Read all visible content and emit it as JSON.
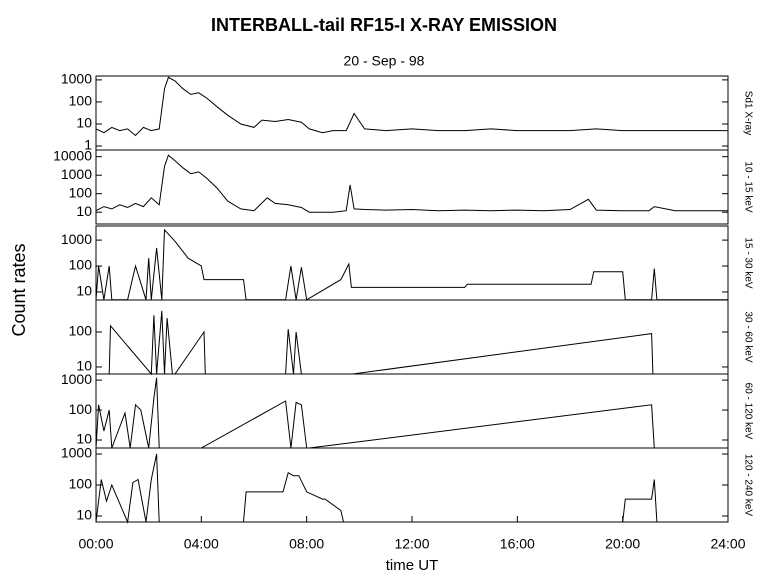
{
  "chart_data": [
    {
      "type": "line",
      "title": "INTERBALL-tail  RF15-I   X-RAY  EMISSION",
      "subtitle": "20 - Sep - 98",
      "ylabel": "Count  rates",
      "log_scale": true,
      "xlim": [
        0,
        24
      ],
      "ylim": [
        0.66,
        1500
      ],
      "yticks": [
        1,
        10,
        100,
        1000
      ],
      "x": [
        0,
        0.3,
        0.6,
        0.9,
        1.2,
        1.5,
        1.8,
        2.1,
        2.4,
        2.6,
        2.75,
        3.0,
        3.3,
        3.6,
        3.9,
        4.2,
        4.6,
        5.0,
        5.5,
        6.0,
        6.3,
        6.8,
        7.3,
        7.8,
        8.1,
        8.6,
        9.0,
        9.5,
        9.8,
        10.2,
        11,
        12,
        13,
        14,
        15,
        16,
        17,
        18,
        19,
        20,
        21,
        22,
        23,
        24
      ],
      "series": [
        {
          "name": "Sd1  X-ray",
          "color": "#000000",
          "values": [
            6,
            4,
            7,
            5,
            6,
            3,
            7,
            5,
            6,
            400,
            1300,
            900,
            400,
            220,
            260,
            150,
            60,
            25,
            10,
            7,
            15,
            13,
            16,
            12,
            6,
            4,
            5,
            5,
            30,
            6,
            5,
            6,
            5,
            5,
            6,
            5,
            5,
            5,
            6,
            5,
            5,
            5,
            5,
            5
          ]
        }
      ]
    },
    {
      "type": "line",
      "log_scale": true,
      "xlim": [
        0,
        24
      ],
      "ylim": [
        2.3,
        23000
      ],
      "yticks": [
        10,
        100,
        1000,
        10000
      ],
      "x": [
        0,
        0.3,
        0.6,
        0.9,
        1.2,
        1.5,
        1.8,
        2.1,
        2.4,
        2.6,
        2.75,
        3.0,
        3.3,
        3.6,
        3.9,
        4.2,
        4.6,
        5.0,
        5.5,
        6.0,
        6.5,
        6.8,
        7.3,
        7.8,
        8.1,
        8.6,
        9.0,
        9.5,
        9.65,
        9.8,
        10.2,
        11,
        12,
        13,
        14,
        15,
        16,
        17,
        18,
        18.7,
        19,
        20,
        21,
        21.2,
        22,
        23,
        24
      ],
      "series": [
        {
          "name": "10 - 15 keV",
          "color": "#000000",
          "values": [
            12,
            20,
            15,
            25,
            18,
            30,
            20,
            60,
            25,
            3000,
            12000,
            6000,
            2500,
            1200,
            1500,
            700,
            200,
            40,
            15,
            12,
            60,
            30,
            25,
            18,
            10,
            10,
            10,
            12,
            300,
            15,
            14,
            13,
            14,
            12,
            13,
            12,
            13,
            12,
            14,
            50,
            13,
            12,
            12,
            20,
            12,
            12,
            12
          ]
        }
      ]
    },
    {
      "type": "line",
      "log_scale": true,
      "xlim": [
        0,
        24
      ],
      "ylim": [
        4.9,
        3500
      ],
      "yticks": [
        10,
        100,
        1000
      ],
      "x": [
        0,
        0.1,
        0.3,
        0.5,
        0.6,
        1.2,
        1.5,
        1.9,
        2.0,
        2.1,
        2.3,
        2.5,
        2.6,
        3.0,
        3.5,
        4.0,
        4.1,
        5.6,
        5.7,
        7.2,
        7.4,
        7.6,
        7.8,
        8.0,
        9.3,
        9.6,
        9.7,
        9.8,
        14,
        14.1,
        18.8,
        18.9,
        20,
        20.1,
        21.1,
        21.2,
        21.3,
        24
      ],
      "series": [
        {
          "name": "15 - 30 keV",
          "color": "#000000",
          "values": [
            5,
            100,
            5,
            100,
            5,
            5,
            100,
            5,
            200,
            5,
            500,
            5,
            2500,
            900,
            200,
            100,
            30,
            30,
            5,
            5,
            100,
            5,
            90,
            5,
            30,
            120,
            15,
            15,
            15,
            20,
            20,
            60,
            60,
            5,
            5,
            80,
            5,
            5
          ]
        }
      ]
    },
    {
      "type": "line",
      "log_scale": true,
      "xlim": [
        0,
        24
      ],
      "ylim": [
        6.3,
        820
      ],
      "yticks": [
        10,
        100
      ],
      "x": [
        0,
        0.5,
        0.55,
        2.1,
        2.2,
        2.3,
        2.5,
        2.6,
        2.7,
        2.9,
        3.0,
        4.1,
        4.15,
        7.2,
        7.3,
        7.5,
        7.6,
        7.8,
        7.9,
        9.7,
        9.75,
        21.1,
        21.15,
        24
      ],
      "series": [
        {
          "name": "30 - 60 keV",
          "color": "#000000",
          "values": [
            6.3,
            6.3,
            150,
            6.3,
            300,
            6.3,
            400,
            6.3,
            250,
            6.3,
            6.3,
            100,
            6.3,
            6.3,
            120,
            6.3,
            100,
            6.3,
            6.3,
            6.3,
            6.3,
            90,
            6.3,
            6.3
          ]
        }
      ]
    },
    {
      "type": "line",
      "log_scale": true,
      "xlim": [
        0,
        24
      ],
      "ylim": [
        5.4,
        1600
      ],
      "yticks": [
        10,
        100,
        1000
      ],
      "x": [
        0,
        0.1,
        0.3,
        0.5,
        0.6,
        1.1,
        1.3,
        1.5,
        1.7,
        2.0,
        2.2,
        2.3,
        2.4,
        4.0,
        7.2,
        7.4,
        7.6,
        7.8,
        8.0,
        8.1,
        21.1,
        21.2,
        21.3,
        24
      ],
      "series": [
        {
          "name": "60 - 120 keV",
          "color": "#000000",
          "values": [
            5.4,
            150,
            20,
            100,
            5.4,
            80,
            5.4,
            150,
            100,
            5.4,
            250,
            1200,
            5.4,
            5.4,
            200,
            5.4,
            180,
            150,
            5.4,
            5.4,
            150,
            5.4,
            5.4,
            5.4
          ]
        }
      ]
    },
    {
      "type": "line",
      "log_scale": true,
      "xlim": [
        0,
        24
      ],
      "ylim": [
        6.4,
        1560
      ],
      "yticks": [
        10,
        100,
        1000
      ],
      "xlabel": "time UT",
      "xticks": [
        {
          "value": 0,
          "label": "00:00"
        },
        {
          "value": 4,
          "label": "04:00"
        },
        {
          "value": 8,
          "label": "08:00"
        },
        {
          "value": 12,
          "label": "12:00"
        },
        {
          "value": 16,
          "label": "16:00"
        },
        {
          "value": 20,
          "label": "20:00"
        },
        {
          "value": 24,
          "label": "24:00"
        }
      ],
      "x": [
        0,
        0.2,
        0.4,
        0.6,
        1.2,
        1.4,
        1.6,
        1.9,
        2.1,
        2.3,
        2.4,
        5.6,
        5.7,
        7.1,
        7.3,
        7.5,
        7.7,
        8.0,
        8.6,
        8.7,
        9.3,
        9.4,
        20.0,
        20.1,
        21.1,
        21.2,
        21.3,
        24
      ],
      "series": [
        {
          "name": "120 - 240 keV",
          "color": "#000000",
          "values": [
            6.4,
            150,
            30,
            100,
            6.4,
            120,
            150,
            6.4,
            150,
            1000,
            6.4,
            6.4,
            60,
            60,
            250,
            200,
            200,
            60,
            35,
            35,
            15,
            6.4,
            6.4,
            35,
            35,
            150,
            6.4,
            6.4
          ]
        }
      ]
    }
  ]
}
